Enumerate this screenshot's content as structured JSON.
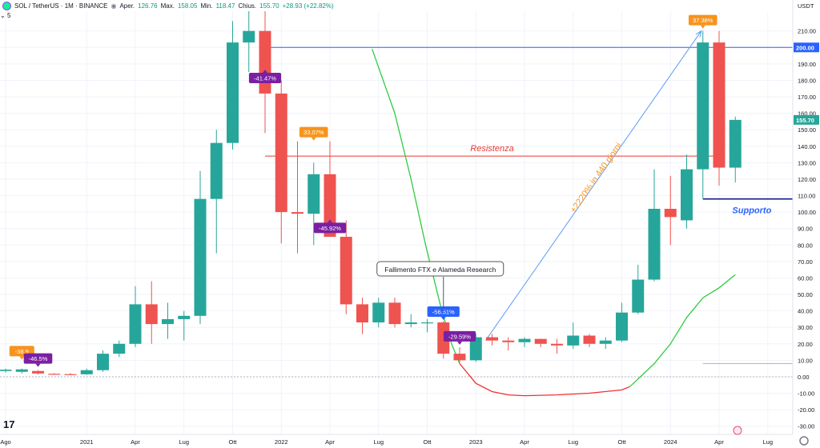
{
  "header": {
    "symbol": "SOL / TetherUS · 1M · BINANCE",
    "open_label": "Aper.",
    "open": "126.76",
    "high_label": "Max.",
    "high": "158.05",
    "low_label": "Min.",
    "low": "118.47",
    "close_label": "Chius.",
    "close": "155.70",
    "change": "+28.93 (+22.82%)",
    "indicator_label": "5"
  },
  "currency": "USDT",
  "colors": {
    "up": "#26a69a",
    "down": "#ef5350",
    "grid": "#f0f3fa",
    "axis": "#787b86"
  },
  "chart_data": {
    "type": "candlestick",
    "ylim": [
      -35,
      222
    ],
    "y_ticks": [
      -30,
      -20,
      -10,
      0,
      10,
      20,
      30,
      40,
      50,
      60,
      70,
      80,
      90,
      100,
      110,
      120,
      130,
      140,
      150,
      160,
      170,
      180,
      190,
      200,
      210
    ],
    "x_ticks": [
      {
        "label": "Ago",
        "i": 0
      },
      {
        "label": "2021",
        "i": 5
      },
      {
        "label": "Apr",
        "i": 8
      },
      {
        "label": "Lug",
        "i": 11
      },
      {
        "label": "Ott",
        "i": 14
      },
      {
        "label": "2022",
        "i": 17
      },
      {
        "label": "Apr",
        "i": 20
      },
      {
        "label": "Lug",
        "i": 23
      },
      {
        "label": "Ott",
        "i": 26
      },
      {
        "label": "2023",
        "i": 29
      },
      {
        "label": "Apr",
        "i": 32
      },
      {
        "label": "Lug",
        "i": 35
      },
      {
        "label": "Ott",
        "i": 38
      },
      {
        "label": "2024",
        "i": 41
      },
      {
        "label": "Apr",
        "i": 44
      },
      {
        "label": "Lug",
        "i": 47
      }
    ],
    "candles": [
      {
        "o": 3.5,
        "h": 5,
        "l": 2.5,
        "c": 4.3
      },
      {
        "o": 3,
        "h": 5,
        "l": 2,
        "c": 4.5
      },
      {
        "o": 3.5,
        "h": 4,
        "l": 1.5,
        "c": 2
      },
      {
        "o": 1.8,
        "h": 2.3,
        "l": 1.2,
        "c": 1.6
      },
      {
        "o": 1.6,
        "h": 2.2,
        "l": 1.1,
        "c": 1.5
      },
      {
        "o": 1.5,
        "h": 5,
        "l": 1.2,
        "c": 4
      },
      {
        "o": 4,
        "h": 16,
        "l": 3,
        "c": 14
      },
      {
        "o": 14,
        "h": 22,
        "l": 12,
        "c": 20
      },
      {
        "o": 20,
        "h": 55,
        "l": 18,
        "c": 44
      },
      {
        "o": 44,
        "h": 58,
        "l": 20,
        "c": 32
      },
      {
        "o": 32,
        "h": 45,
        "l": 23,
        "c": 35
      },
      {
        "o": 35,
        "h": 40,
        "l": 22,
        "c": 37
      },
      {
        "o": 37,
        "h": 125,
        "l": 32,
        "c": 108
      },
      {
        "o": 108,
        "h": 150,
        "l": 75,
        "c": 142
      },
      {
        "o": 142,
        "h": 216,
        "l": 138,
        "c": 203
      },
      {
        "o": 203,
        "h": 260,
        "l": 185,
        "c": 210
      },
      {
        "o": 210,
        "h": 260,
        "l": 148,
        "c": 172
      },
      {
        "o": 172,
        "h": 180,
        "l": 81,
        "c": 100
      },
      {
        "o": 100,
        "h": 143,
        "l": 75,
        "c": 99
      },
      {
        "o": 99,
        "h": 130,
        "l": 80,
        "c": 123
      },
      {
        "o": 123,
        "h": 143,
        "l": 85,
        "c": 85
      },
      {
        "o": 85,
        "h": 95,
        "l": 38,
        "c": 44
      },
      {
        "o": 44,
        "h": 48,
        "l": 26,
        "c": 33
      },
      {
        "o": 33,
        "h": 48,
        "l": 30,
        "c": 45
      },
      {
        "o": 45,
        "h": 48,
        "l": 30,
        "c": 32
      },
      {
        "o": 32,
        "h": 38,
        "l": 30,
        "c": 33
      },
      {
        "o": 33,
        "h": 35,
        "l": 27,
        "c": 33
      },
      {
        "o": 33,
        "h": 34,
        "l": 11,
        "c": 14
      },
      {
        "o": 14,
        "h": 18,
        "l": 8,
        "c": 10
      },
      {
        "o": 10,
        "h": 26,
        "l": 9,
        "c": 24
      },
      {
        "o": 24,
        "h": 26,
        "l": 19,
        "c": 22
      },
      {
        "o": 22,
        "h": 24,
        "l": 16,
        "c": 21
      },
      {
        "o": 21,
        "h": 24,
        "l": 18,
        "c": 23
      },
      {
        "o": 23,
        "h": 23,
        "l": 18,
        "c": 20
      },
      {
        "o": 20,
        "h": 23,
        "l": 14,
        "c": 19
      },
      {
        "o": 19,
        "h": 33,
        "l": 17,
        "c": 25
      },
      {
        "o": 25,
        "h": 26,
        "l": 18,
        "c": 20
      },
      {
        "o": 20,
        "h": 24,
        "l": 17,
        "c": 22
      },
      {
        "o": 22,
        "h": 45,
        "l": 21,
        "c": 39
      },
      {
        "o": 39,
        "h": 68,
        "l": 38,
        "c": 59
      },
      {
        "o": 59,
        "h": 126,
        "l": 58,
        "c": 102
      },
      {
        "o": 102,
        "h": 122,
        "l": 80,
        "c": 97
      },
      {
        "o": 95,
        "h": 135,
        "l": 90,
        "c": 126
      },
      {
        "o": 126,
        "h": 210,
        "l": 108,
        "c": 203
      },
      {
        "o": 203,
        "h": 210,
        "l": 116,
        "c": 127
      },
      {
        "o": 127,
        "h": 158,
        "l": 118,
        "c": 156
      }
    ],
    "green_curve": [
      [
        22.6,
        199
      ],
      [
        24,
        160
      ],
      [
        25,
        120
      ],
      [
        25.9,
        80
      ],
      [
        26.8,
        44
      ],
      [
        27.5,
        20
      ],
      [
        28,
        8
      ]
    ],
    "red_curve": [
      [
        28,
        8
      ],
      [
        29,
        -4
      ],
      [
        30,
        -9
      ],
      [
        31,
        -11
      ],
      [
        32,
        -11.5
      ],
      [
        34,
        -11
      ],
      [
        36,
        -10
      ],
      [
        38,
        -8
      ],
      [
        38.5,
        -6
      ]
    ],
    "green_curve2": [
      [
        38.5,
        -6
      ],
      [
        40,
        8
      ],
      [
        41,
        20
      ],
      [
        42,
        36
      ],
      [
        43,
        48
      ],
      [
        44,
        54
      ],
      [
        45,
        62
      ]
    ],
    "hlines": [
      {
        "y": 200,
        "color": "#2962ff",
        "from": 16
      },
      {
        "y": 134,
        "color": "#e53935",
        "from": 16,
        "to": 44
      },
      {
        "y": 108,
        "color": "#0d1b8c",
        "from": 43
      },
      {
        "y": 8,
        "color": "#b2b5be",
        "from": 43
      }
    ],
    "resistance_label": "Resistenza",
    "support_label": "Supporto",
    "arrow_label": "+2220% in 440 giorni",
    "arrow": {
      "from": [
        29.6,
        22
      ],
      "to": [
        42.9,
        210
      ]
    },
    "callout": {
      "text": "Fallimento FTX e Alameda Research",
      "i": 27,
      "y": 25
    },
    "price_tags": [
      {
        "text": "200.00",
        "y": 200,
        "bg": "#2962ff"
      },
      {
        "text": "155.70",
        "y": 156,
        "bg": "#26a69a"
      }
    ],
    "pct_labels": [
      {
        "text": "-38.9",
        "i": 1,
        "y": 10,
        "bg": "#f7941d",
        "pos": "above"
      },
      {
        "text": "-46.5%",
        "i": 2,
        "y": 5.5,
        "bg": "#7b1fa2",
        "pos": "above"
      },
      {
        "text": "-41.47%",
        "i": 16,
        "y": 187,
        "bg": "#7b1fa2",
        "pos": "below"
      },
      {
        "text": "33.07%",
        "i": 19,
        "y": 143,
        "bg": "#f7941d",
        "pos": "above"
      },
      {
        "text": "-45.92%",
        "i": 20,
        "y": 96,
        "bg": "#7b1fa2",
        "pos": "below"
      },
      {
        "text": "-56.51%",
        "i": 27,
        "y": 34,
        "bg": "#2962ff",
        "pos": "above"
      },
      {
        "text": "-29.59%",
        "i": 28,
        "y": 19,
        "bg": "#7b1fa2",
        "pos": "above"
      },
      {
        "text": "37.38%",
        "i": 43,
        "y": 211,
        "bg": "#f7941d",
        "pos": "above"
      }
    ]
  }
}
